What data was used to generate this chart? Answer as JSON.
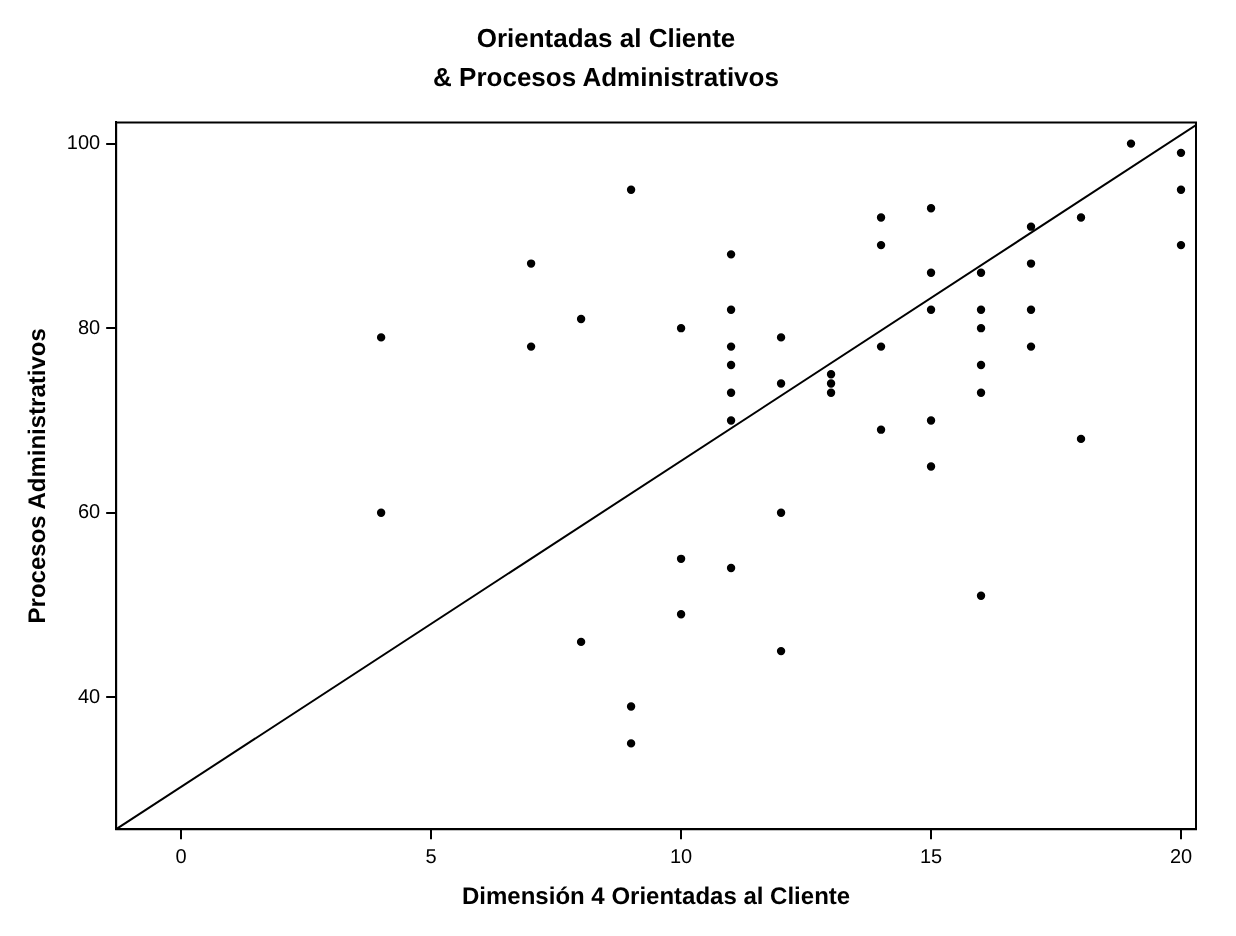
{
  "chart_data": {
    "type": "scatter",
    "title": "Orientadas al Cliente",
    "subtitle": "& Procesos Administrativos",
    "xlabel": "Dimensión 4 Orientadas al Cliente",
    "ylabel": "Procesos Administrativos",
    "xlim": [
      -1.3,
      20.3
    ],
    "ylim": [
      25.7,
      102.3
    ],
    "xticks": [
      0,
      5,
      10,
      15,
      20
    ],
    "yticks": [
      40,
      60,
      80,
      100
    ],
    "grid": false,
    "legend": false,
    "series": [
      {
        "color": "#000000",
        "marker": "circle",
        "x": [
          4,
          4,
          7,
          7,
          8,
          8,
          9,
          9,
          9,
          10,
          10,
          10,
          11,
          11,
          11,
          11,
          11,
          11,
          11,
          12,
          12,
          12,
          12,
          13,
          13,
          13,
          14,
          14,
          14,
          14,
          15,
          15,
          15,
          15,
          15,
          16,
          16,
          16,
          16,
          16,
          16,
          17,
          17,
          17,
          17,
          18,
          18,
          19,
          20,
          20,
          20
        ],
        "values": [
          79,
          60,
          87,
          78,
          81,
          46,
          95,
          39,
          35,
          80,
          55,
          49,
          88,
          82,
          78,
          76,
          73,
          70,
          54,
          79,
          74,
          60,
          45,
          75,
          74,
          73,
          92,
          89,
          78,
          69,
          93,
          86,
          82,
          70,
          65,
          86,
          82,
          80,
          76,
          73,
          51,
          91,
          87,
          82,
          78,
          92,
          68,
          100,
          99,
          95,
          89
        ]
      },
      {
        "type": "line",
        "color": "#000000",
        "x": [
          -1.3,
          20.3
        ],
        "values": [
          25.7,
          102
        ]
      }
    ]
  }
}
